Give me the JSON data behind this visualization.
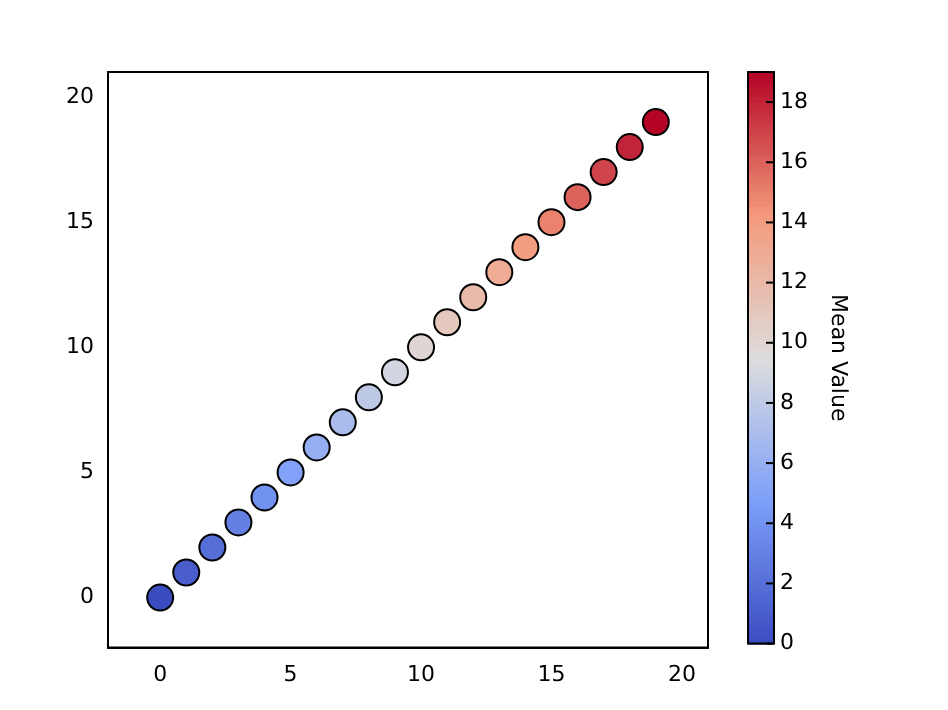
{
  "chart_data": {
    "type": "scatter",
    "clabel": "Mean Value",
    "x": [
      0,
      1,
      2,
      3,
      4,
      5,
      6,
      7,
      8,
      9,
      10,
      11,
      12,
      13,
      14,
      15,
      16,
      17,
      18,
      19
    ],
    "values": [
      0,
      1,
      2,
      3,
      4,
      5,
      6,
      7,
      8,
      9,
      10,
      11,
      12,
      13,
      14,
      15,
      16,
      17,
      18,
      19
    ],
    "cvalues": [
      0,
      1,
      2,
      3,
      4,
      5,
      6,
      7,
      8,
      9,
      10,
      11,
      12,
      13,
      14,
      15,
      16,
      17,
      18,
      19
    ],
    "clim": [
      0,
      19
    ],
    "cticks": [
      0,
      2,
      4,
      6,
      8,
      10,
      12,
      14,
      16,
      18
    ],
    "xlim": [
      -2,
      21
    ],
    "ylim": [
      -2,
      21
    ],
    "xticks": [
      0,
      5,
      10,
      15,
      20
    ],
    "yticks": [
      0,
      5,
      10,
      15,
      20
    ],
    "marker": "circle",
    "grid": false,
    "legend": false
  }
}
